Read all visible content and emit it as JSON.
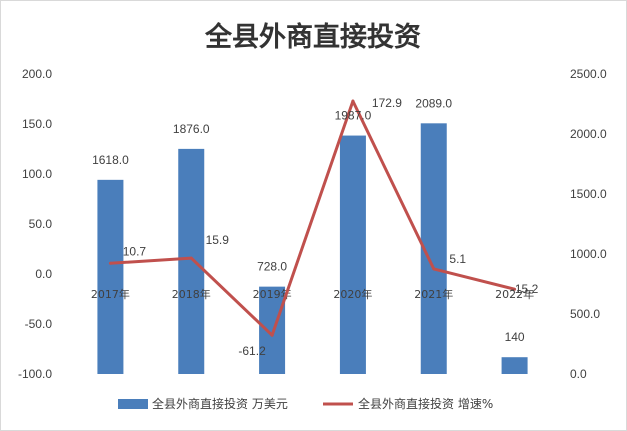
{
  "chart_data": {
    "type": "bar+line",
    "title": "全县外商直接投资",
    "categories": [
      "2017年",
      "2018年",
      "2019年",
      "2020年",
      "2021年",
      "2022年"
    ],
    "series": [
      {
        "name": "全县外商直接投资 万美元",
        "type": "bar",
        "axis": "right",
        "values": [
          1618.0,
          1876.0,
          728.0,
          1987.0,
          2089.0,
          140
        ],
        "labels": [
          "1618.0",
          "1876.0",
          "728.0",
          "1987.0",
          "2089.0",
          "140"
        ],
        "color": "#4a7ebb"
      },
      {
        "name": "全县外商直接投资 增速%",
        "type": "line",
        "axis": "left",
        "values": [
          10.7,
          15.9,
          -61.2,
          172.9,
          5.1,
          -15.2
        ],
        "labels": [
          "10.7",
          "15.9",
          "-61.2",
          "172.9",
          "5.1",
          "-15.2"
        ],
        "color": "#c0504d"
      }
    ],
    "y_left": {
      "range": [
        -100,
        200
      ],
      "ticks": [
        "200.0",
        "150.0",
        "100.0",
        "50.0",
        "0.0",
        "-50.0",
        "-100.0"
      ]
    },
    "y_right": {
      "range": [
        0,
        2500
      ],
      "ticks": [
        "2500.0",
        "2000.0",
        "1500.0",
        "1000.0",
        "500.0",
        "0.0"
      ]
    },
    "grid": false,
    "legend_position": "bottom"
  }
}
